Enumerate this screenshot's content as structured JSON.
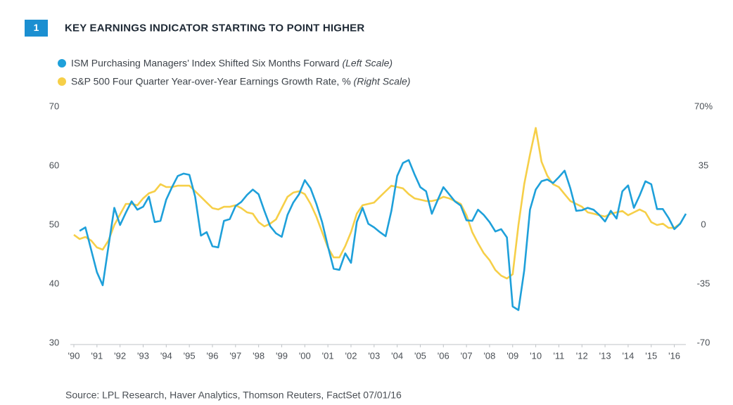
{
  "chart_data": {
    "type": "line",
    "badge": "1",
    "title": "KEY EARNINGS INDICATOR STARTING TO POINT HIGHER",
    "source": "Source: LPL Research, Haver Analytics, Thomson Reuters, FactSet  07/01/16",
    "xlim": [
      1990,
      2016.5
    ],
    "xticks": [
      {
        "value": 1990,
        "label": "'90"
      },
      {
        "value": 1991,
        "label": "'91"
      },
      {
        "value": 1992,
        "label": "'92"
      },
      {
        "value": 1993,
        "label": "'93"
      },
      {
        "value": 1994,
        "label": "'94"
      },
      {
        "value": 1995,
        "label": "'95"
      },
      {
        "value": 1996,
        "label": "'96"
      },
      {
        "value": 1997,
        "label": "'97"
      },
      {
        "value": 1998,
        "label": "'98"
      },
      {
        "value": 1999,
        "label": "'99"
      },
      {
        "value": 2000,
        "label": "'00"
      },
      {
        "value": 2001,
        "label": "'01"
      },
      {
        "value": 2002,
        "label": "'02"
      },
      {
        "value": 2003,
        "label": "'03"
      },
      {
        "value": 2004,
        "label": "'04"
      },
      {
        "value": 2005,
        "label": "'05"
      },
      {
        "value": 2006,
        "label": "'06"
      },
      {
        "value": 2007,
        "label": "'07"
      },
      {
        "value": 2008,
        "label": "'08"
      },
      {
        "value": 2009,
        "label": "'09"
      },
      {
        "value": 2010,
        "label": "'10"
      },
      {
        "value": 2011,
        "label": "'11"
      },
      {
        "value": 2012,
        "label": "'12"
      },
      {
        "value": 2013,
        "label": "'13"
      },
      {
        "value": 2014,
        "label": "'14"
      },
      {
        "value": 2015,
        "label": "'15"
      },
      {
        "value": 2016,
        "label": "'16"
      }
    ],
    "ylim": [
      30,
      70
    ],
    "yticks": [
      30,
      40,
      50,
      60,
      70
    ],
    "y2lim": [
      -70,
      70
    ],
    "y2ticks": [
      {
        "value": 70,
        "label": "70%"
      },
      35,
      0,
      -35,
      -70
    ],
    "grid": false,
    "series": [
      {
        "name": "ISM Purchasing Managers’ Index Shifted Six Months Forward",
        "scale_note": "(Left Scale)",
        "color": "#1ea0da",
        "axis": "y",
        "x": [
          1990.25,
          1990.5,
          1990.75,
          1991,
          1991.25,
          1991.5,
          1991.75,
          1992,
          1992.25,
          1992.5,
          1992.75,
          1993,
          1993.25,
          1993.5,
          1993.75,
          1994,
          1994.25,
          1994.5,
          1994.75,
          1995,
          1995.25,
          1995.5,
          1995.75,
          1996,
          1996.25,
          1996.5,
          1996.75,
          1997,
          1997.25,
          1997.5,
          1997.75,
          1998,
          1998.25,
          1998.5,
          1998.75,
          1999,
          1999.25,
          1999.5,
          1999.75,
          2000,
          2000.25,
          2000.5,
          2000.75,
          2001,
          2001.25,
          2001.5,
          2001.75,
          2002,
          2002.25,
          2002.5,
          2002.75,
          2003,
          2003.25,
          2003.5,
          2003.75,
          2004,
          2004.25,
          2004.5,
          2004.75,
          2005,
          2005.25,
          2005.5,
          2005.75,
          2006,
          2006.25,
          2006.5,
          2006.75,
          2007,
          2007.25,
          2007.5,
          2007.75,
          2008,
          2008.25,
          2008.5,
          2008.75,
          2009,
          2009.25,
          2009.5,
          2009.75,
          2010,
          2010.25,
          2010.5,
          2010.75,
          2011,
          2011.25,
          2011.5,
          2011.75,
          2012,
          2012.25,
          2012.5,
          2012.75,
          2013,
          2013.25,
          2013.5,
          2013.75,
          2014,
          2014.25,
          2014.5,
          2014.75,
          2015,
          2015.25,
          2015.5,
          2015.75,
          2016,
          2016.25,
          2016.5
        ],
        "values": [
          49,
          49.6,
          45.8,
          42,
          39.8,
          46.4,
          52.9,
          50,
          52.1,
          54,
          52.6,
          53.1,
          54.8,
          50.5,
          50.7,
          54.3,
          56.4,
          58.3,
          58.7,
          58.5,
          54.8,
          48.2,
          48.8,
          46.4,
          46.2,
          50.7,
          51,
          53.2,
          53.9,
          55.1,
          56,
          55.2,
          52.4,
          49.8,
          48.6,
          48,
          51.7,
          53.8,
          55.2,
          57.6,
          56.2,
          53.6,
          50.5,
          46.4,
          42.6,
          42.4,
          45.2,
          43.6,
          50.5,
          52.9,
          50.2,
          49.6,
          48.8,
          48.1,
          52.4,
          58.3,
          60.5,
          61,
          58.6,
          56.4,
          55.7,
          51.9,
          54.2,
          56.4,
          55.2,
          54,
          53.3,
          50.8,
          50.7,
          52.6,
          51.7,
          50.5,
          48.9,
          49.3,
          47.9,
          36.2,
          35.6,
          42.3,
          52.6,
          56,
          57.4,
          57.7,
          57.1,
          58.1,
          59.2,
          56.2,
          52.4,
          52.5,
          52.9,
          52.6,
          51.7,
          50.6,
          52.4,
          51.1,
          55.7,
          56.7,
          52.9,
          55,
          57.4,
          56.9,
          52.7,
          52.7,
          51.2,
          49.3,
          50.2,
          51.9
        ]
      },
      {
        "name": "S&P 500 Four Quarter Year-over-Year Earnings Growth Rate, %",
        "scale_note": "(Right Scale)",
        "color": "#f6cf48",
        "axis": "y2",
        "x": [
          1990,
          1990.25,
          1990.5,
          1990.75,
          1991,
          1991.25,
          1991.5,
          1991.75,
          1992,
          1992.25,
          1992.5,
          1992.75,
          1993,
          1993.25,
          1993.5,
          1993.75,
          1994,
          1994.25,
          1994.5,
          1994.75,
          1995,
          1995.25,
          1995.5,
          1995.75,
          1996,
          1996.25,
          1996.5,
          1996.75,
          1997,
          1997.25,
          1997.5,
          1997.75,
          1998,
          1998.25,
          1998.5,
          1998.75,
          1999,
          1999.25,
          1999.5,
          1999.75,
          2000,
          2000.25,
          2000.5,
          2000.75,
          2001,
          2001.25,
          2001.5,
          2001.75,
          2002,
          2002.25,
          2002.5,
          2002.75,
          2003,
          2003.25,
          2003.5,
          2003.75,
          2004,
          2004.25,
          2004.5,
          2004.75,
          2005,
          2005.25,
          2005.5,
          2005.75,
          2006,
          2006.25,
          2006.5,
          2006.75,
          2007,
          2007.25,
          2007.5,
          2007.75,
          2008,
          2008.25,
          2008.5,
          2008.75,
          2009,
          2009.25,
          2009.5,
          2009.75,
          2010,
          2010.25,
          2010.5,
          2010.75,
          2011,
          2011.25,
          2011.5,
          2011.75,
          2012,
          2012.25,
          2012.5,
          2012.75,
          2013,
          2013.25,
          2013.5,
          2013.75,
          2014,
          2014.25,
          2014.5,
          2014.75,
          2015,
          2015.25,
          2015.5,
          2015.75,
          2016,
          2016.25
        ],
        "values": [
          -5.8,
          -8.3,
          -7.1,
          -9.2,
          -13.3,
          -14.6,
          -9.2,
          0,
          6.3,
          12.5,
          12.5,
          11.7,
          15.8,
          18.8,
          20,
          24.2,
          22.5,
          22.5,
          23.3,
          23.3,
          23.3,
          20,
          16.7,
          13.3,
          10,
          9.2,
          10.8,
          10.8,
          11.7,
          10,
          7.5,
          6.7,
          1.7,
          -0.8,
          0.8,
          3.3,
          10,
          16.7,
          19.2,
          20,
          18.3,
          12.5,
          5,
          -4.2,
          -13.3,
          -19.2,
          -19.2,
          -12.5,
          -4.2,
          6.7,
          11.7,
          12.5,
          13.3,
          16.7,
          20,
          23.3,
          22.5,
          21.7,
          18.3,
          15.8,
          15,
          14.2,
          14.2,
          15,
          16.7,
          15.8,
          14.2,
          12.5,
          5.8,
          -4.2,
          -10.8,
          -16.7,
          -20.8,
          -26.7,
          -30,
          -31.7,
          -29.2,
          0,
          24.2,
          41.7,
          57.5,
          37.5,
          29.2,
          24.2,
          22.5,
          18.3,
          14.2,
          12.5,
          10.8,
          7.5,
          6.7,
          5.8,
          5,
          6.7,
          7.5,
          8.3,
          5.8,
          7.5,
          9.2,
          7.5,
          1.7,
          0,
          0.8,
          -1.7,
          -1.7,
          0.8
        ]
      }
    ]
  }
}
